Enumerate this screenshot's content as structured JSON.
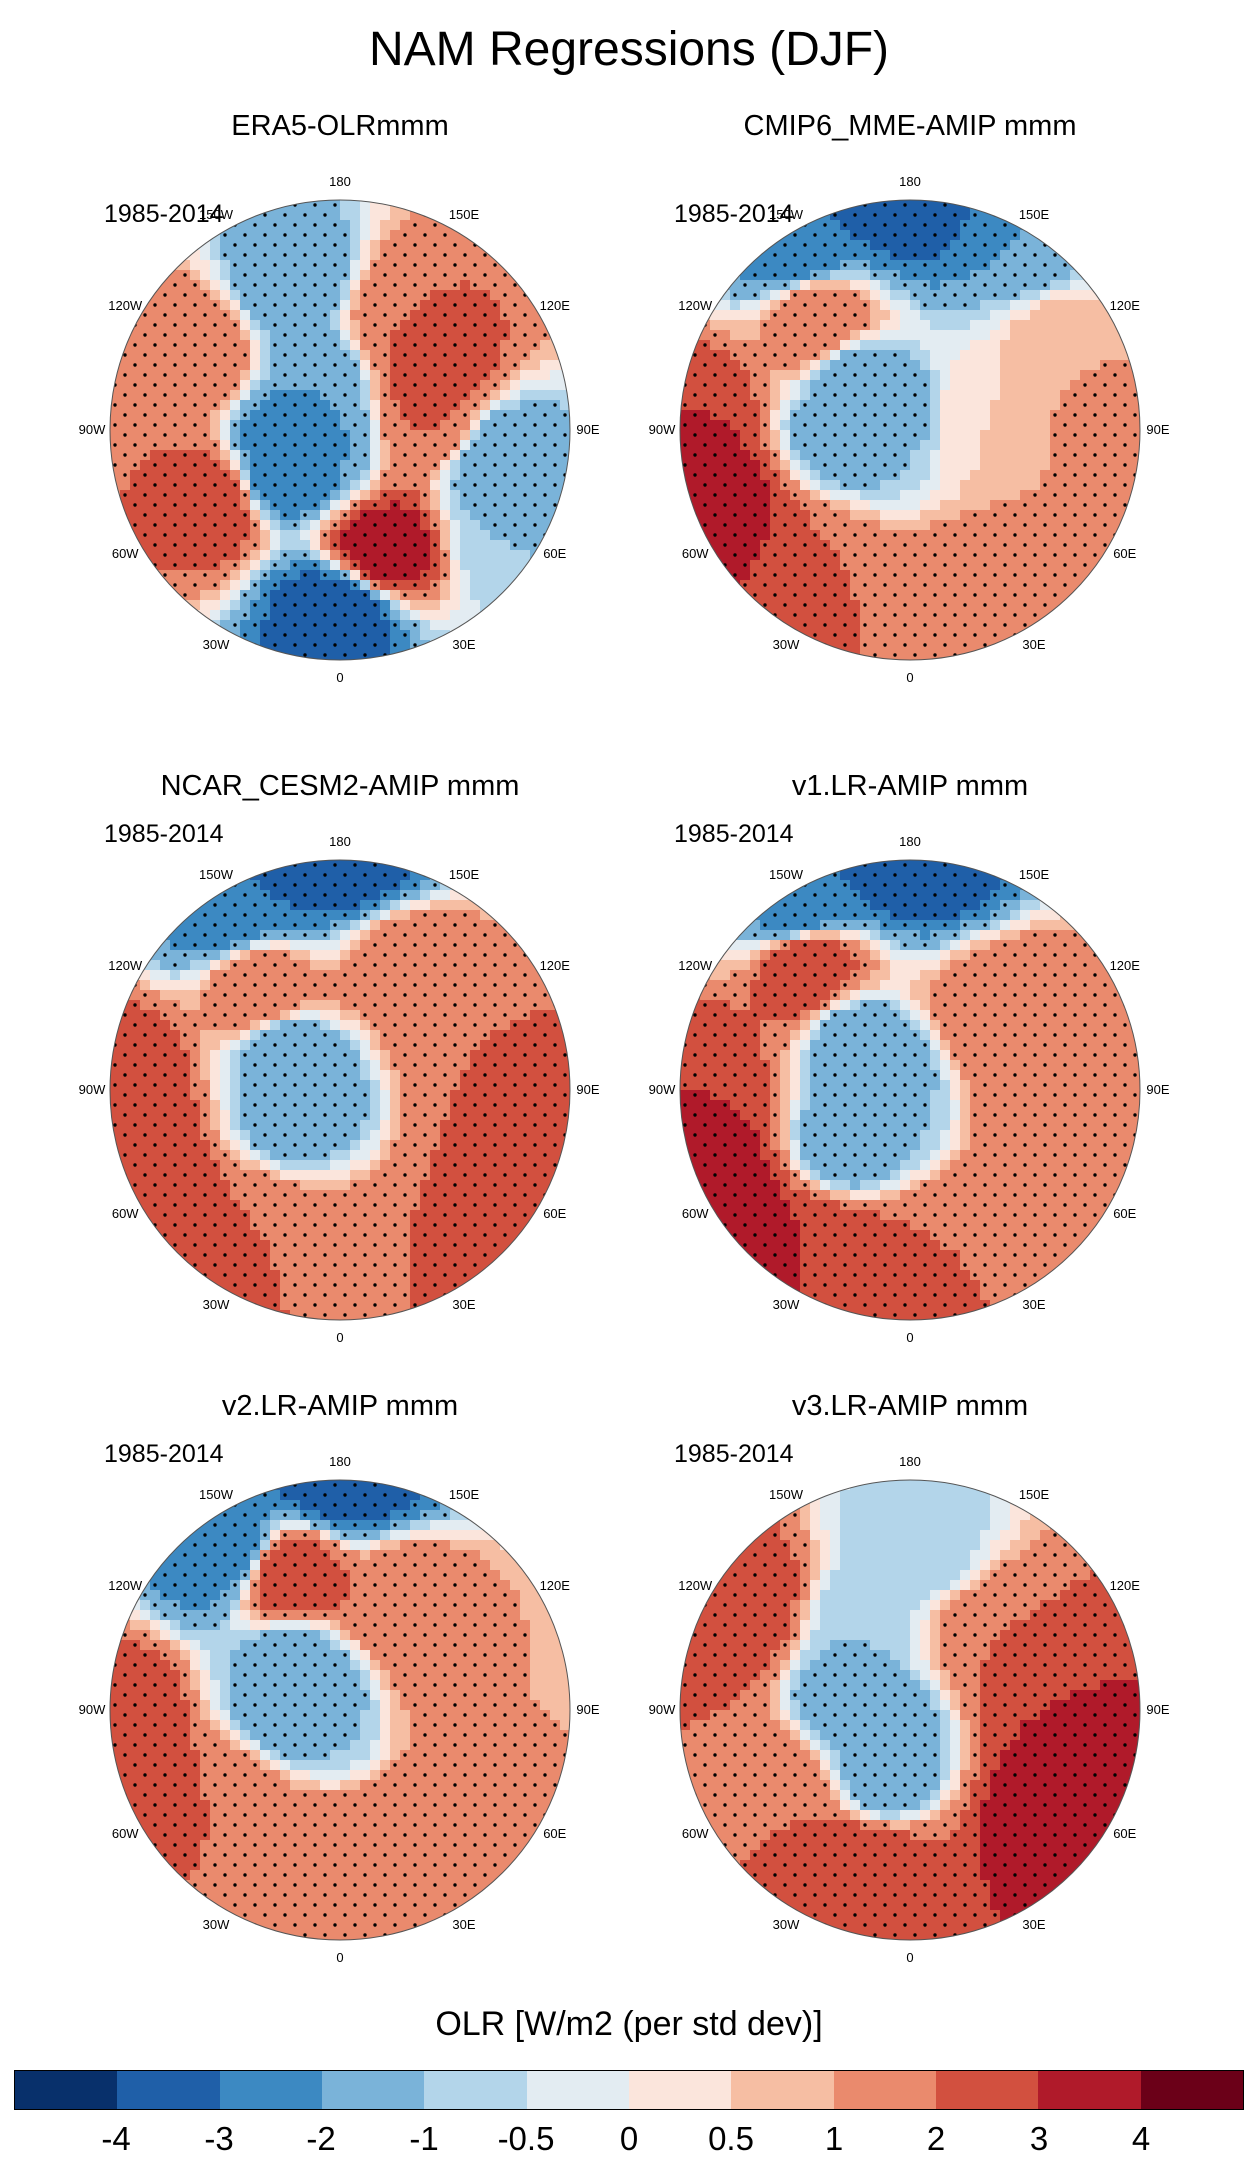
{
  "figure": {
    "title": "NAM Regressions (DJF)"
  },
  "panels": [
    {
      "id": "era5",
      "title": "ERA5-OLRmmm",
      "period": "1985-2014"
    },
    {
      "id": "cmip6",
      "title": "CMIP6_MME-AMIP  mmm",
      "period": "1985-2014"
    },
    {
      "id": "cesm2",
      "title": "NCAR_CESM2-AMIP  mmm",
      "period": "1985-2014"
    },
    {
      "id": "v1",
      "title": "v1.LR-AMIP  mmm",
      "period": "1985-2014"
    },
    {
      "id": "v2",
      "title": "v2.LR-AMIP  mmm",
      "period": "1985-2014"
    },
    {
      "id": "v3",
      "title": "v3.LR-AMIP  mmm",
      "period": "1985-2014"
    }
  ],
  "longitude_labels": [
    "180",
    "150E",
    "120E",
    "90E",
    "60E",
    "30E",
    "0",
    "30W",
    "60W",
    "90W",
    "120W",
    "150W"
  ],
  "colorbar": {
    "title": "OLR [W/m2 (per std dev)]",
    "ticks": [
      "-4",
      "-3",
      "-2",
      "-1",
      "-0.5",
      "0",
      "0.5",
      "1",
      "2",
      "3",
      "4"
    ],
    "colors": [
      "#08306b",
      "#1f5fa8",
      "#3c89c2",
      "#7ab3d9",
      "#b3d5ea",
      "#e3ecf2",
      "#fbe5dc",
      "#f6bea3",
      "#ea8a6d",
      "#d2503f",
      "#b01a2a",
      "#6b0018"
    ]
  },
  "chart_data": {
    "type": "heatmap",
    "projection": "north polar stereographic",
    "title": "NAM Regressions (DJF)",
    "variable": "OLR [W/m2 (per std dev)]",
    "period": "1985-2014",
    "levels": [
      -4,
      -3,
      -2,
      -1,
      -0.5,
      0,
      0.5,
      1,
      2,
      3,
      4
    ],
    "datasets": [
      "ERA5-OLRmmm",
      "CMIP6_MME-AMIP  mmm",
      "NCAR_CESM2-AMIP  mmm",
      "v1.LR-AMIP  mmm",
      "v2.LR-AMIP  mmm",
      "v3.LR-AMIP  mmm"
    ],
    "fields": {
      "era5": [
        {
          "lon": 0,
          "lat": 35,
          "v": -4
        },
        {
          "lon": 20,
          "lat": 50,
          "v": 4
        },
        {
          "lon": 300,
          "lat": 45,
          "v": 3
        },
        {
          "lon": 270,
          "lat": 30,
          "v": 2
        },
        {
          "lon": 240,
          "lat": 40,
          "v": 2
        },
        {
          "lon": 200,
          "lat": 42,
          "v": -2
        },
        {
          "lon": 150,
          "lat": 50,
          "v": 2
        },
        {
          "lon": 120,
          "lat": 55,
          "v": 3
        },
        {
          "lon": 100,
          "lat": 60,
          "v": 2
        },
        {
          "lon": 80,
          "lat": 40,
          "v": -2
        },
        {
          "lon": 60,
          "lat": 30,
          "v": -1
        },
        {
          "lon": 280,
          "lat": 72,
          "v": -3
        },
        {
          "lon": 310,
          "lat": 68,
          "v": -3
        },
        {
          "lon": 200,
          "lat": 72,
          "v": -2
        },
        {
          "lon": 0,
          "lat": 90,
          "v": -2
        }
      ],
      "cmip6": [
        {
          "lon": 180,
          "lat": 20,
          "v": -4
        },
        {
          "lon": 210,
          "lat": 25,
          "v": -3
        },
        {
          "lon": 150,
          "lat": 25,
          "v": -2
        },
        {
          "lon": 270,
          "lat": 25,
          "v": 3
        },
        {
          "lon": 290,
          "lat": 25,
          "v": 4
        },
        {
          "lon": 330,
          "lat": 35,
          "v": 2
        },
        {
          "lon": 30,
          "lat": 35,
          "v": 2
        },
        {
          "lon": 80,
          "lat": 25,
          "v": 2
        },
        {
          "lon": 120,
          "lat": 35,
          "v": 1
        },
        {
          "lon": 220,
          "lat": 45,
          "v": 2
        },
        {
          "lon": 230,
          "lat": 70,
          "v": -2
        },
        {
          "lon": 270,
          "lat": 70,
          "v": -2
        },
        {
          "lon": 0,
          "lat": 90,
          "v": -1
        },
        {
          "lon": 80,
          "lat": 65,
          "v": 0.5
        }
      ],
      "cesm2": [
        {
          "lon": 180,
          "lat": 20,
          "v": -4
        },
        {
          "lon": 210,
          "lat": 25,
          "v": -3
        },
        {
          "lon": 270,
          "lat": 25,
          "v": 3
        },
        {
          "lon": 300,
          "lat": 25,
          "v": 3
        },
        {
          "lon": 330,
          "lat": 40,
          "v": 2
        },
        {
          "lon": 40,
          "lat": 40,
          "v": 2
        },
        {
          "lon": 70,
          "lat": 25,
          "v": 3
        },
        {
          "lon": 100,
          "lat": 40,
          "v": 2
        },
        {
          "lon": 150,
          "lat": 45,
          "v": 2
        },
        {
          "lon": 220,
          "lat": 50,
          "v": 2
        },
        {
          "lon": 240,
          "lat": 70,
          "v": -2
        },
        {
          "lon": 300,
          "lat": 75,
          "v": -2
        },
        {
          "lon": 0,
          "lat": 90,
          "v": -1
        }
      ],
      "v1": [
        {
          "lon": 180,
          "lat": 20,
          "v": -4
        },
        {
          "lon": 210,
          "lat": 25,
          "v": -3
        },
        {
          "lon": 220,
          "lat": 40,
          "v": 3
        },
        {
          "lon": 270,
          "lat": 25,
          "v": 3
        },
        {
          "lon": 300,
          "lat": 25,
          "v": 4
        },
        {
          "lon": 330,
          "lat": 35,
          "v": 3
        },
        {
          "lon": 20,
          "lat": 40,
          "v": 2
        },
        {
          "lon": 60,
          "lat": 30,
          "v": 2
        },
        {
          "lon": 100,
          "lat": 35,
          "v": 2
        },
        {
          "lon": 130,
          "lat": 50,
          "v": 2
        },
        {
          "lon": 230,
          "lat": 70,
          "v": -2
        },
        {
          "lon": 310,
          "lat": 65,
          "v": -2
        },
        {
          "lon": 0,
          "lat": 90,
          "v": -1
        }
      ],
      "v2": [
        {
          "lon": 180,
          "lat": 20,
          "v": -4
        },
        {
          "lon": 215,
          "lat": 30,
          "v": -3
        },
        {
          "lon": 200,
          "lat": 45,
          "v": 3
        },
        {
          "lon": 275,
          "lat": 25,
          "v": 3
        },
        {
          "lon": 310,
          "lat": 45,
          "v": 2
        },
        {
          "lon": 20,
          "lat": 45,
          "v": 2
        },
        {
          "lon": 150,
          "lat": 50,
          "v": 2
        },
        {
          "lon": 100,
          "lat": 40,
          "v": 1
        },
        {
          "lon": 60,
          "lat": 25,
          "v": 1
        },
        {
          "lon": 230,
          "lat": 70,
          "v": -2
        },
        {
          "lon": 270,
          "lat": 75,
          "v": -2
        },
        {
          "lon": 0,
          "lat": 90,
          "v": -1
        }
      ],
      "v3": [
        {
          "lon": 240,
          "lat": 30,
          "v": 3
        },
        {
          "lon": 270,
          "lat": 25,
          "v": 2
        },
        {
          "lon": 300,
          "lat": 40,
          "v": 2
        },
        {
          "lon": 345,
          "lat": 40,
          "v": 3
        },
        {
          "lon": 60,
          "lat": 35,
          "v": 4
        },
        {
          "lon": 90,
          "lat": 45,
          "v": 3
        },
        {
          "lon": 130,
          "lat": 55,
          "v": 2
        },
        {
          "lon": 180,
          "lat": 40,
          "v": -1
        },
        {
          "lon": 210,
          "lat": 60,
          "v": -1
        },
        {
          "lon": 260,
          "lat": 70,
          "v": -2
        },
        {
          "lon": 340,
          "lat": 70,
          "v": -2
        },
        {
          "lon": 0,
          "lat": 90,
          "v": -1
        }
      ]
    }
  }
}
